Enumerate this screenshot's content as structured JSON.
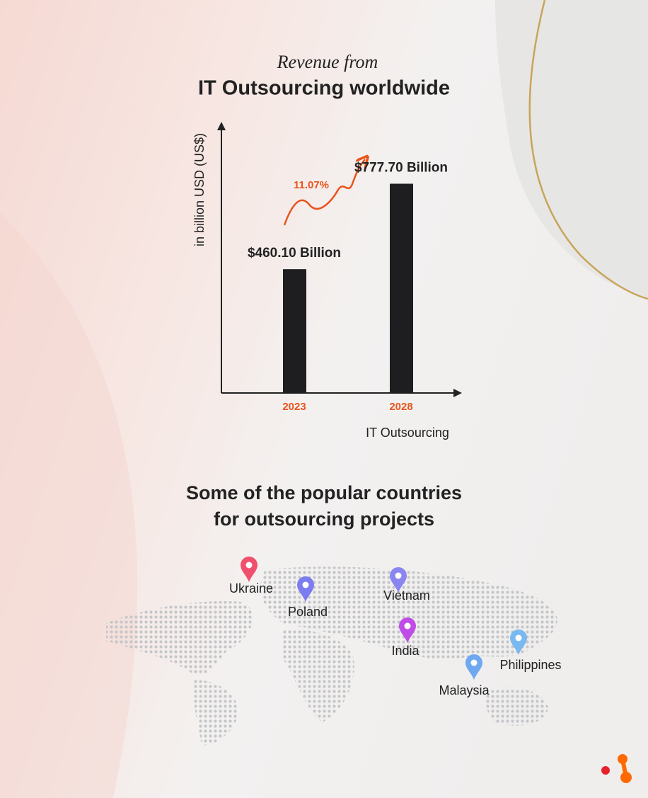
{
  "chart_data": {
    "type": "bar",
    "subtitle": "Revenue from",
    "title": "IT Outsourcing worldwide",
    "y_label": "in billion USD (US$)",
    "x_label": "IT Outsourcing",
    "categories": [
      "2023",
      "2028"
    ],
    "values": [
      460.1,
      777.7
    ],
    "value_labels": [
      "$460.10 Billion",
      "$777.70 Billion"
    ],
    "annotation": "11.07%",
    "color": "#1e1e20",
    "category_color": "#e8541c",
    "ylim": [
      0,
      1000
    ]
  },
  "map": {
    "title_lines": [
      "Some of the popular countries",
      "for outsourcing projects"
    ],
    "countries": [
      "Ukraine",
      "Poland",
      "Vietnam",
      "India",
      "Malaysia",
      "Philippines"
    ]
  }
}
